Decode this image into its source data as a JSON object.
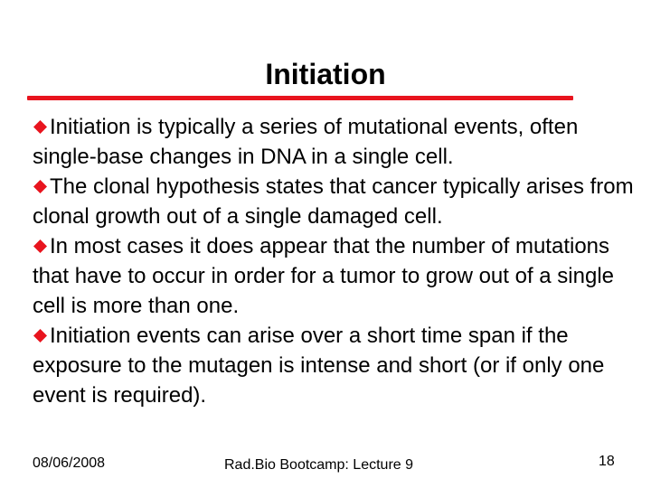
{
  "slide": {
    "title": "Initiation",
    "accent_color": "#e8141e",
    "bullet_icon": "diamond-bullet-icon",
    "bullets": [
      "Initiation is typically a series of mutational events, often single-base changes in DNA in a single cell.",
      "The clonal hypothesis states that cancer typically arises from clonal growth out of a single damaged cell.",
      "In most cases it does appear that the number of mutations that have to occur in order for a tumor to grow out of a single cell is more than one.",
      "Initiation events can arise over a short time span if the exposure to the mutagen is intense and short (or if only one event is required)."
    ]
  },
  "footer": {
    "date": "08/06/2008",
    "center": "Rad.Bio Bootcamp: Lecture 9",
    "page_number": "18"
  }
}
